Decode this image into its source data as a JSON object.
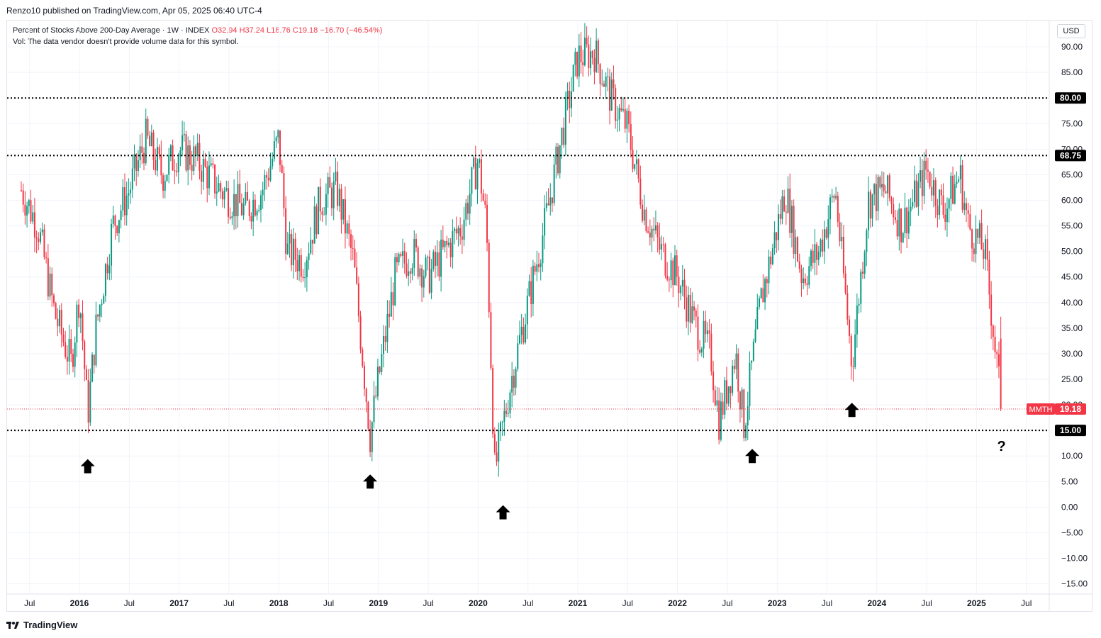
{
  "header": {
    "published": "Renzo10 published on TradingView.com, Apr 05, 2025 06:40 UTC-4",
    "symbol_line": "Percent of Stocks Above 200-Day Average · 1W · INDEX",
    "ohlc": "O32.94  H37.24  L18.76  C19.18  −16.70 (−46.54%)",
    "vol_note": "Vol: The data vendor doesn't provide volume data for this symbol."
  },
  "currency_label": "USD",
  "footer_brand": "TradingView",
  "colors": {
    "up": "#089981",
    "down": "#f23645",
    "price_line": "#f23645",
    "level_line": "#000000",
    "grid": "#f0f3fa"
  },
  "chart_data": {
    "type": "candlestick",
    "ylim": [
      -17,
      95
    ],
    "y_ticks": [
      "90.00",
      "85.00",
      "80.00",
      "75.00",
      "70.00",
      "65.00",
      "60.00",
      "55.00",
      "50.00",
      "45.00",
      "40.00",
      "35.00",
      "30.00",
      "25.00",
      "20.00",
      "15.00",
      "10.00",
      "5.00",
      "0.00",
      "−5.00",
      "−10.00",
      "−15.00"
    ],
    "x_ticks": [
      {
        "label": "Jul",
        "year": false
      },
      {
        "label": "2016",
        "year": true
      },
      {
        "label": "Jul",
        "year": false
      },
      {
        "label": "2017",
        "year": true
      },
      {
        "label": "Jul",
        "year": false
      },
      {
        "label": "2018",
        "year": true
      },
      {
        "label": "Jul",
        "year": false
      },
      {
        "label": "2019",
        "year": true
      },
      {
        "label": "Jul",
        "year": false
      },
      {
        "label": "2020",
        "year": true
      },
      {
        "label": "Jul",
        "year": false
      },
      {
        "label": "2021",
        "year": true
      },
      {
        "label": "Jul",
        "year": false
      },
      {
        "label": "2022",
        "year": true
      },
      {
        "label": "Jul",
        "year": false
      },
      {
        "label": "2023",
        "year": true
      },
      {
        "label": "Jul",
        "year": false
      },
      {
        "label": "2024",
        "year": true
      },
      {
        "label": "Jul",
        "year": false
      },
      {
        "label": "2025",
        "year": true
      },
      {
        "label": "Jul",
        "year": false
      }
    ],
    "series_anchors": [
      [
        "2015-06",
        62
      ],
      [
        "2015-08",
        55
      ],
      [
        "2015-10",
        38
      ],
      [
        "2015-12",
        28
      ],
      [
        "2016-01",
        42
      ],
      [
        "2016-02",
        18
      ],
      [
        "2016-03",
        35
      ],
      [
        "2016-05",
        55
      ],
      [
        "2016-07",
        62
      ],
      [
        "2016-09",
        72
      ],
      [
        "2016-11",
        65
      ],
      [
        "2017-01",
        70
      ],
      [
        "2017-03",
        68
      ],
      [
        "2017-06",
        62
      ],
      [
        "2017-09",
        58
      ],
      [
        "2017-11",
        62
      ],
      [
        "2018-01",
        72
      ],
      [
        "2018-02",
        50
      ],
      [
        "2018-04",
        48
      ],
      [
        "2018-06",
        60
      ],
      [
        "2018-08",
        62
      ],
      [
        "2018-10",
        48
      ],
      [
        "2018-12",
        14
      ],
      [
        "2019-01",
        25
      ],
      [
        "2019-03",
        45
      ],
      [
        "2019-05",
        50
      ],
      [
        "2019-07",
        45
      ],
      [
        "2019-09",
        50
      ],
      [
        "2019-11",
        55
      ],
      [
        "2020-01",
        68
      ],
      [
        "2020-02",
        55
      ],
      [
        "2020-03",
        7
      ],
      [
        "2020-05",
        25
      ],
      [
        "2020-07",
        40
      ],
      [
        "2020-09",
        55
      ],
      [
        "2020-11",
        72
      ],
      [
        "2021-01",
        88
      ],
      [
        "2021-03",
        89
      ],
      [
        "2021-05",
        80
      ],
      [
        "2021-07",
        74
      ],
      [
        "2021-09",
        58
      ],
      [
        "2021-11",
        50
      ],
      [
        "2022-01",
        45
      ],
      [
        "2022-03",
        36
      ],
      [
        "2022-05",
        30
      ],
      [
        "2022-06",
        17
      ],
      [
        "2022-08",
        30
      ],
      [
        "2022-09",
        16
      ],
      [
        "2022-11",
        40
      ],
      [
        "2023-02",
        62
      ],
      [
        "2023-04",
        45
      ],
      [
        "2023-06",
        50
      ],
      [
        "2023-08",
        62
      ],
      [
        "2023-10",
        28
      ],
      [
        "2023-12",
        60
      ],
      [
        "2024-02",
        62
      ],
      [
        "2024-04",
        55
      ],
      [
        "2024-06",
        62
      ],
      [
        "2024-07",
        66
      ],
      [
        "2024-09",
        58
      ],
      [
        "2024-11",
        65
      ],
      [
        "2024-12",
        55
      ],
      [
        "2025-02",
        50
      ],
      [
        "2025-03",
        35
      ],
      [
        "2025-04",
        19.18
      ]
    ],
    "last_candle": {
      "open": 32.94,
      "high": 37.24,
      "low": 18.76,
      "close": 19.18,
      "change": -16.7,
      "change_pct": -46.54
    },
    "horizontal_levels": [
      {
        "value": 80.0,
        "label": "80.00"
      },
      {
        "value": 68.75,
        "label": "68.75"
      },
      {
        "value": 15.0,
        "label": "15.00"
      }
    ],
    "price_tag": {
      "symbol": "MMTH",
      "value": "19.18"
    },
    "annotations": [
      {
        "type": "arrow-up",
        "date": "2016-02",
        "value": 8
      },
      {
        "type": "arrow-up",
        "date": "2018-12",
        "value": 5
      },
      {
        "type": "arrow-up",
        "date": "2020-04",
        "value": -1
      },
      {
        "type": "arrow-up",
        "date": "2022-10",
        "value": 10
      },
      {
        "type": "arrow-up",
        "date": "2023-10",
        "value": 19
      },
      {
        "type": "text",
        "text": "?",
        "date": "2025-04",
        "value": 11
      }
    ]
  }
}
